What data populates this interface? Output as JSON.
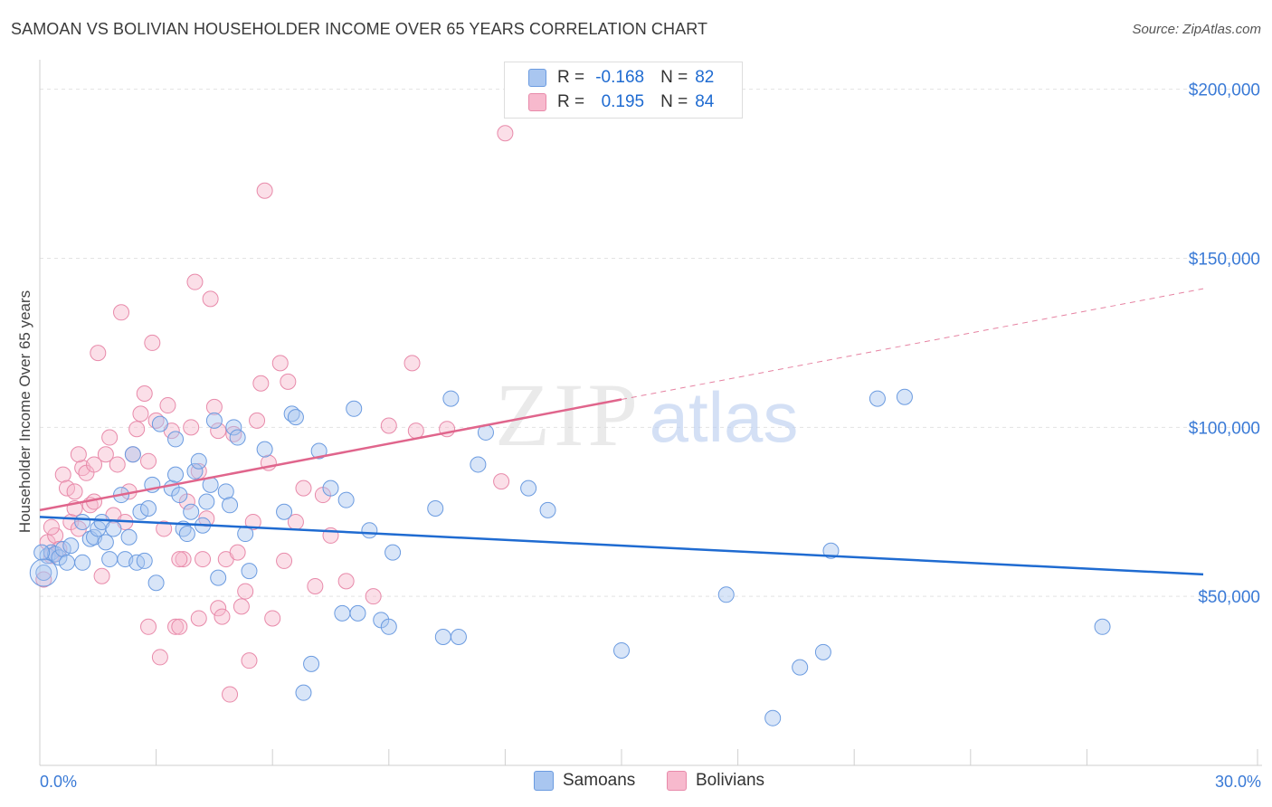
{
  "header": {
    "title": "SAMOAN VS BOLIVIAN HOUSEHOLDER INCOME OVER 65 YEARS CORRELATION CHART",
    "source": "Source: ZipAtlas.com"
  },
  "watermark": {
    "zip": "ZIP",
    "atlas": "atlas"
  },
  "legend_top": [
    {
      "r_label": "R =",
      "r_value": "-0.168",
      "n_label": "N =",
      "n_value": "82",
      "color": "#a9c6f0"
    },
    {
      "r_label": "R =",
      "r_value": "0.195",
      "n_label": "N =",
      "n_value": "84",
      "color": "#f7b9cd"
    }
  ],
  "legend_bottom": [
    {
      "label": "Samoans",
      "color": "#a9c6f0"
    },
    {
      "label": "Bolivians",
      "color": "#f7b9cd"
    }
  ],
  "colors": {
    "samoan_fill": "#a9c6f0",
    "samoan_stroke": "#6b9be0",
    "samoan_line": "#1f6bd1",
    "bolivian_fill": "#f7b9cd",
    "bolivian_stroke": "#e88aaa",
    "bolivian_line": "#e0658c",
    "tick_text": "#3a7ad6",
    "grid": "#e3e3e3"
  },
  "chart_data": {
    "type": "scatter",
    "title": "SAMOAN VS BOLIVIAN HOUSEHOLDER INCOME OVER 65 YEARS CORRELATION CHART",
    "xlabel": "",
    "ylabel": "Householder Income Over 65 years",
    "xlim": [
      0,
      30
    ],
    "ylim": [
      0,
      210000
    ],
    "x_tick_labels": [
      "0.0%",
      "30.0%"
    ],
    "y_ticks": [
      50000,
      100000,
      150000,
      200000
    ],
    "y_tick_labels": [
      "$50,000",
      "$100,000",
      "$150,000",
      "$200,000"
    ],
    "grid": true,
    "series": [
      {
        "name": "Samoans",
        "r": -0.168,
        "n": 82,
        "trend": {
          "x": [
            0,
            30
          ],
          "y": [
            73500,
            56500
          ],
          "dashed_to": 30
        },
        "points": [
          [
            0.1,
            57000
          ],
          [
            0.2,
            62000
          ],
          [
            0.3,
            63000
          ],
          [
            0.4,
            62500
          ],
          [
            0.5,
            61500
          ],
          [
            0.6,
            64000
          ],
          [
            0.7,
            60000
          ],
          [
            0.8,
            65000
          ],
          [
            1.1,
            72000
          ],
          [
            1.1,
            60000
          ],
          [
            1.3,
            67000
          ],
          [
            1.4,
            67500
          ],
          [
            1.5,
            70000
          ],
          [
            1.6,
            72000
          ],
          [
            1.7,
            66000
          ],
          [
            1.8,
            61000
          ],
          [
            1.9,
            70000
          ],
          [
            2.1,
            80000
          ],
          [
            2.2,
            61000
          ],
          [
            2.3,
            67500
          ],
          [
            2.4,
            92000
          ],
          [
            2.5,
            60000
          ],
          [
            2.6,
            75000
          ],
          [
            2.7,
            60500
          ],
          [
            2.8,
            76000
          ],
          [
            2.9,
            83000
          ],
          [
            3.0,
            54000
          ],
          [
            3.1,
            101000
          ],
          [
            3.4,
            82000
          ],
          [
            3.5,
            96500
          ],
          [
            3.5,
            86000
          ],
          [
            3.6,
            80000
          ],
          [
            3.7,
            70000
          ],
          [
            3.8,
            68500
          ],
          [
            3.9,
            75000
          ],
          [
            4.0,
            87000
          ],
          [
            4.1,
            90000
          ],
          [
            4.2,
            71000
          ],
          [
            4.3,
            78000
          ],
          [
            4.4,
            83000
          ],
          [
            4.5,
            102000
          ],
          [
            4.6,
            55500
          ],
          [
            4.8,
            81000
          ],
          [
            4.9,
            77000
          ],
          [
            5.0,
            100000
          ],
          [
            5.1,
            97000
          ],
          [
            5.3,
            68500
          ],
          [
            5.4,
            57500
          ],
          [
            5.8,
            93500
          ],
          [
            6.3,
            75000
          ],
          [
            6.5,
            104000
          ],
          [
            6.6,
            103000
          ],
          [
            6.8,
            21500
          ],
          [
            7.0,
            30000
          ],
          [
            7.2,
            93000
          ],
          [
            7.5,
            82000
          ],
          [
            7.8,
            45000
          ],
          [
            7.9,
            78500
          ],
          [
            8.1,
            105500
          ],
          [
            8.2,
            45000
          ],
          [
            8.5,
            69500
          ],
          [
            8.8,
            43000
          ],
          [
            9.0,
            41000
          ],
          [
            9.1,
            63000
          ],
          [
            10.2,
            76000
          ],
          [
            10.4,
            38000
          ],
          [
            10.6,
            108500
          ],
          [
            10.8,
            38000
          ],
          [
            11.3,
            89000
          ],
          [
            11.5,
            98500
          ],
          [
            12.6,
            82000
          ],
          [
            13.1,
            75500
          ],
          [
            15.0,
            34000
          ],
          [
            17.7,
            50500
          ],
          [
            18.9,
            14000
          ],
          [
            19.6,
            29000
          ],
          [
            20.2,
            33500
          ],
          [
            20.4,
            63500
          ],
          [
            21.6,
            108500
          ],
          [
            22.3,
            109000
          ],
          [
            27.4,
            41000
          ],
          [
            0.05,
            63000
          ]
        ]
      },
      {
        "name": "Bolivians",
        "r": 0.195,
        "n": 84,
        "trend": {
          "x": [
            0,
            30
          ],
          "y": [
            75500,
            141000
          ],
          "dashed_from": 15
        },
        "points": [
          [
            0.1,
            55000
          ],
          [
            0.2,
            66000
          ],
          [
            0.3,
            62000
          ],
          [
            0.4,
            68000
          ],
          [
            0.5,
            64000
          ],
          [
            0.6,
            86000
          ],
          [
            0.7,
            82000
          ],
          [
            0.8,
            72000
          ],
          [
            0.9,
            76000
          ],
          [
            1.0,
            70000
          ],
          [
            1.1,
            88000
          ],
          [
            1.2,
            86500
          ],
          [
            1.3,
            77000
          ],
          [
            1.4,
            78000
          ],
          [
            1.5,
            122000
          ],
          [
            1.6,
            56000
          ],
          [
            1.7,
            92000
          ],
          [
            1.8,
            97000
          ],
          [
            1.9,
            74000
          ],
          [
            2.0,
            89000
          ],
          [
            2.1,
            134000
          ],
          [
            2.2,
            72000
          ],
          [
            2.3,
            81000
          ],
          [
            2.4,
            92000
          ],
          [
            2.5,
            99500
          ],
          [
            2.6,
            104000
          ],
          [
            2.7,
            110000
          ],
          [
            2.8,
            90000
          ],
          [
            2.9,
            125000
          ],
          [
            3.0,
            102000
          ],
          [
            3.1,
            32000
          ],
          [
            3.2,
            70000
          ],
          [
            3.3,
            106500
          ],
          [
            3.4,
            99000
          ],
          [
            3.5,
            41000
          ],
          [
            3.6,
            41000
          ],
          [
            3.7,
            61000
          ],
          [
            3.8,
            78000
          ],
          [
            3.9,
            100000
          ],
          [
            4.0,
            143000
          ],
          [
            4.1,
            87000
          ],
          [
            4.2,
            61000
          ],
          [
            4.3,
            73000
          ],
          [
            4.4,
            138000
          ],
          [
            4.5,
            106000
          ],
          [
            4.6,
            46500
          ],
          [
            4.7,
            44000
          ],
          [
            4.8,
            61000
          ],
          [
            4.9,
            21000
          ],
          [
            5.0,
            98000
          ],
          [
            5.1,
            63000
          ],
          [
            5.2,
            47000
          ],
          [
            5.3,
            51500
          ],
          [
            5.4,
            31000
          ],
          [
            5.5,
            72000
          ],
          [
            5.6,
            102000
          ],
          [
            5.7,
            113000
          ],
          [
            5.8,
            170000
          ],
          [
            5.9,
            89500
          ],
          [
            6.0,
            43500
          ],
          [
            6.2,
            119000
          ],
          [
            6.3,
            60500
          ],
          [
            6.4,
            113500
          ],
          [
            6.6,
            72000
          ],
          [
            6.8,
            82000
          ],
          [
            7.1,
            53000
          ],
          [
            7.3,
            80000
          ],
          [
            7.5,
            68000
          ],
          [
            7.9,
            54500
          ],
          [
            8.6,
            50000
          ],
          [
            9.0,
            100500
          ],
          [
            9.6,
            119000
          ],
          [
            9.7,
            99000
          ],
          [
            10.5,
            99500
          ],
          [
            11.9,
            84000
          ],
          [
            12.0,
            187000
          ],
          [
            0.3,
            70500
          ],
          [
            1.0,
            92000
          ],
          [
            2.8,
            41000
          ],
          [
            3.6,
            61000
          ],
          [
            4.1,
            43500
          ],
          [
            4.6,
            99000
          ],
          [
            0.9,
            81000
          ],
          [
            1.4,
            89000
          ]
        ]
      }
    ]
  }
}
